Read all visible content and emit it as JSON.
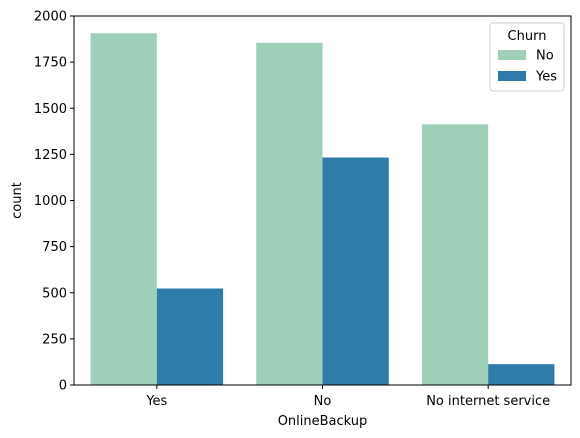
{
  "chart_data": {
    "type": "bar",
    "categories": [
      "Yes",
      "No",
      "No internet service"
    ],
    "series": [
      {
        "name": "No",
        "values": [
          1906,
          1855,
          1413
        ],
        "color": "#9ecfb8"
      },
      {
        "name": "Yes",
        "values": [
          523,
          1233,
          113
        ],
        "color": "#2f7ca9"
      }
    ],
    "xlabel": "OnlineBackup",
    "ylabel": "count",
    "ylim": [
      0,
      2000
    ],
    "yticks": [
      0,
      250,
      500,
      750,
      1000,
      1250,
      1500,
      1750,
      2000
    ],
    "ytick_labels": [
      "0",
      "250",
      "500",
      "750",
      "1000",
      "1250",
      "1500",
      "1750",
      "2000"
    ],
    "legend": {
      "title": "Churn",
      "placement": "top-right"
    },
    "grid": false
  }
}
